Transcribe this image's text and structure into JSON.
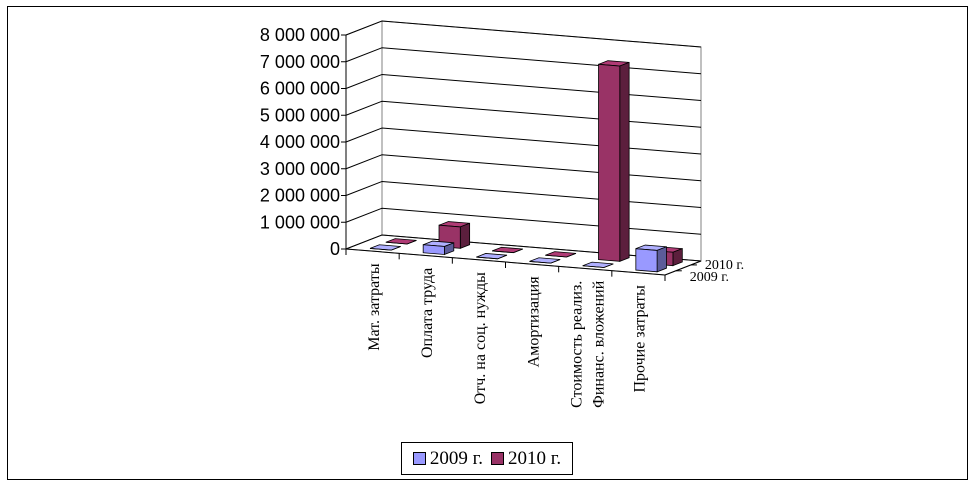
{
  "chart_data": {
    "type": "bar",
    "categories": [
      "Мат. затраты",
      "Оплата труда",
      "Отч. на соц. нужды",
      "Амортизация",
      [
        "Стоимость реализ.",
        "Финанс. вложений"
      ],
      "Прочие затраты"
    ],
    "series": [
      {
        "name": "2009 г.",
        "color": "#9999ff",
        "values": [
          0,
          300000,
          0,
          0,
          0,
          800000
        ]
      },
      {
        "name": "2010 г.",
        "color": "#993366",
        "values": [
          0,
          800000,
          0,
          0,
          7300000,
          500000
        ]
      }
    ],
    "depth_labels": [
      "2010 г.",
      "2009 г."
    ],
    "y_ticks": [
      "0",
      "1 000 000",
      "2 000 000",
      "3 000 000",
      "4 000 000",
      "5 000 000",
      "6 000 000",
      "7 000 000",
      "8 000 000"
    ],
    "ylim": [
      0,
      8000000
    ],
    "grid": true,
    "legend_position": "bottom"
  },
  "legend": {
    "items": [
      "2009 г.",
      "2010 г."
    ]
  }
}
